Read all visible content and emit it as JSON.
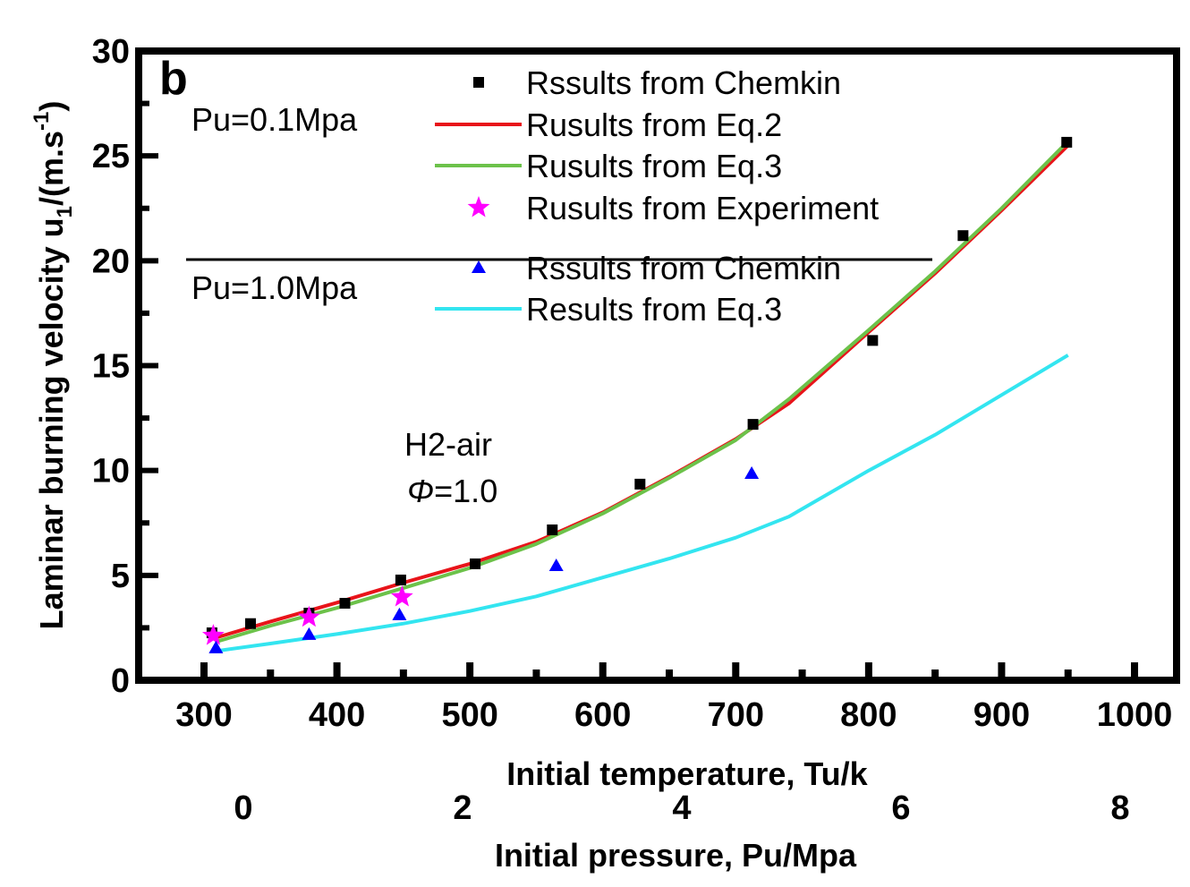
{
  "chart_data": {
    "type": "scatter",
    "panel_label": "b",
    "xlabel": "Initial temperature, Tu/k",
    "x2label": "Initial pressure, Pu/Mpa",
    "ylabel": "Laminar burning velocity u",
    "ylabel_sub": "1",
    "ylabel_unit": "/(m.s",
    "ylabel_sup": "-1",
    "ylabel_close": ")",
    "xlim": [
      250,
      1030
    ],
    "ylim": [
      0,
      30
    ],
    "xticks": [
      300,
      400,
      500,
      600,
      700,
      800,
      900,
      1000
    ],
    "yticks": [
      0,
      5,
      10,
      15,
      20,
      25,
      30
    ],
    "x2ticks": [
      0,
      2,
      4,
      6,
      8
    ],
    "grid": false,
    "legend_position": "top-right",
    "legend_groups": [
      "Pu=0.1Mpa",
      "Pu=1.0Mpa"
    ],
    "annotation": {
      "line1": "H2-air",
      "phi_symbol": "Φ",
      "phi_value": "=1.0"
    },
    "series": [
      {
        "name": "Rssults from Chemkin",
        "group": 0,
        "kind": "marker",
        "marker": "square",
        "color": "#000000",
        "x": [
          306,
          335,
          379,
          406,
          448,
          504,
          562,
          628,
          713,
          803,
          871,
          949
        ],
        "y": [
          2.26,
          2.7,
          3.2,
          3.67,
          4.78,
          5.55,
          7.17,
          9.35,
          12.2,
          16.2,
          21.2,
          25.65
        ]
      },
      {
        "name": "Rusults from Eq.2",
        "group": 0,
        "kind": "line",
        "color": "#e8141a",
        "x": [
          310,
          350,
          400,
          450,
          500,
          550,
          600,
          650,
          700,
          740,
          800,
          850,
          900,
          950
        ],
        "y": [
          2.05,
          2.8,
          3.7,
          4.65,
          5.55,
          6.6,
          8.0,
          9.7,
          11.5,
          13.2,
          16.6,
          19.4,
          22.4,
          25.5
        ]
      },
      {
        "name": "Rusults from Eq.3",
        "group": 0,
        "kind": "line",
        "color": "#6cc24a",
        "x": [
          310,
          350,
          400,
          450,
          500,
          550,
          600,
          650,
          700,
          740,
          800,
          850,
          900,
          950
        ],
        "y": [
          1.85,
          2.6,
          3.45,
          4.4,
          5.35,
          6.5,
          7.95,
          9.65,
          11.45,
          13.4,
          16.7,
          19.5,
          22.5,
          25.7
        ]
      },
      {
        "name": "Rusults from Experiment",
        "group": 0,
        "kind": "marker",
        "marker": "star",
        "color": "#ff00ff",
        "x": [
          307,
          379,
          449
        ],
        "y": [
          2.13,
          3.0,
          3.97
        ]
      },
      {
        "name": "Rssults from Chemkin",
        "group": 1,
        "kind": "marker",
        "marker": "triangle",
        "color": "#0000ff",
        "x": [
          309,
          379,
          447,
          565,
          712
        ],
        "y": [
          1.54,
          2.18,
          3.12,
          5.46,
          9.86
        ]
      },
      {
        "name": "Results from Eq.3",
        "group": 1,
        "kind": "line",
        "color": "#33e5f0",
        "x": [
          310,
          350,
          400,
          450,
          500,
          550,
          600,
          650,
          700,
          740,
          800,
          850,
          900,
          950
        ],
        "y": [
          1.4,
          1.75,
          2.2,
          2.7,
          3.3,
          4.0,
          4.9,
          5.8,
          6.8,
          7.8,
          10.0,
          11.7,
          13.6,
          15.5
        ]
      }
    ]
  }
}
